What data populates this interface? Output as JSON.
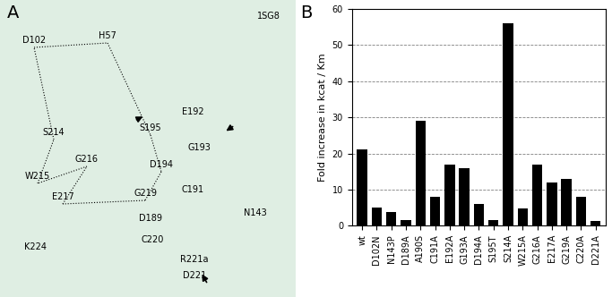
{
  "panel_labels": [
    "A",
    "B"
  ],
  "structure_panel": {
    "pdb_id": "1SG8",
    "residues": [
      "D102",
      "H57",
      "S214",
      "S195",
      "E192",
      "G193",
      "D194",
      "N143",
      "W215",
      "G216",
      "E217",
      "G219",
      "C191",
      "D189",
      "C220",
      "K224",
      "R221a",
      "D221"
    ]
  },
  "chart_data": {
    "type": "bar",
    "y_label": "Fold increase in kcat / Km",
    "categories": [
      "wt",
      "D102N",
      "N143P",
      "D189A",
      "A190S",
      "C191A",
      "E192A",
      "G193A",
      "D194A",
      "S195T",
      "S214A",
      "W215A",
      "G216A",
      "E217A",
      "G219A",
      "C220A",
      "D221A"
    ],
    "values": [
      21,
      5,
      3.7,
      1.5,
      29,
      8,
      17,
      16,
      6,
      1.5,
      56,
      4.7,
      17,
      12,
      13,
      8,
      1.3
    ],
    "color": "#000000",
    "ylim": [
      0,
      60
    ],
    "yticks": [
      0,
      10,
      20,
      30,
      40,
      50,
      60
    ],
    "grid": true
  }
}
